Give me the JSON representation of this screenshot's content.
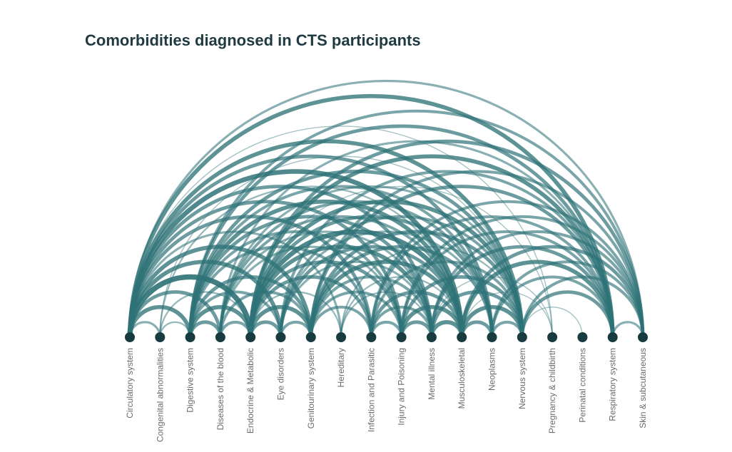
{
  "title": "Comorbidities diagnosed in CTS participants",
  "colors": {
    "arc": "#2e7277",
    "node": "#173b3e",
    "label": "#6b6b6b",
    "title": "#1f3a40"
  },
  "chart_data": {
    "type": "arc",
    "title": "Comorbidities diagnosed in CTS participants",
    "nodes": [
      "Circulatory system",
      "Congenital abnormalities",
      "Digestive system",
      "Diseases of the blood",
      "Endocrine & Metabolic",
      "Eye disorders",
      "Genitourinary system",
      "Hereditary",
      "Infection and Parasitic",
      "Injury and Poisoning",
      "Mental illness",
      "Musculoskeletal",
      "Neoplasms",
      "Nervous system",
      "Pregnancy & childbirth",
      "Perinatal conditions",
      "Respiratory system",
      "Skin & subcutaneous"
    ],
    "links": [
      {
        "source": "Circulatory system",
        "target": "Skin & subcutaneous",
        "value": 3
      },
      {
        "source": "Circulatory system",
        "target": "Respiratory system",
        "value": 6
      },
      {
        "source": "Circulatory system",
        "target": "Nervous system",
        "value": 6
      },
      {
        "source": "Circulatory system",
        "target": "Neoplasms",
        "value": 5
      },
      {
        "source": "Circulatory system",
        "target": "Musculoskeletal",
        "value": 7
      },
      {
        "source": "Circulatory system",
        "target": "Mental illness",
        "value": 5
      },
      {
        "source": "Circulatory system",
        "target": "Injury and Poisoning",
        "value": 5
      },
      {
        "source": "Circulatory system",
        "target": "Infection and Parasitic",
        "value": 5
      },
      {
        "source": "Circulatory system",
        "target": "Hereditary",
        "value": 3
      },
      {
        "source": "Circulatory system",
        "target": "Genitourinary system",
        "value": 6
      },
      {
        "source": "Circulatory system",
        "target": "Eye disorders",
        "value": 6
      },
      {
        "source": "Circulatory system",
        "target": "Endocrine & Metabolic",
        "value": 8
      },
      {
        "source": "Circulatory system",
        "target": "Diseases of the blood",
        "value": 5
      },
      {
        "source": "Circulatory system",
        "target": "Digestive system",
        "value": 6
      },
      {
        "source": "Circulatory system",
        "target": "Congenital abnormalities",
        "value": 3
      },
      {
        "source": "Circulatory system",
        "target": "Pregnancy & childbirth",
        "value": 1
      },
      {
        "source": "Congenital abnormalities",
        "target": "Digestive system",
        "value": 2
      },
      {
        "source": "Congenital abnormalities",
        "target": "Endocrine & Metabolic",
        "value": 2
      },
      {
        "source": "Congenital abnormalities",
        "target": "Musculoskeletal",
        "value": 2
      },
      {
        "source": "Congenital abnormalities",
        "target": "Nervous system",
        "value": 1
      },
      {
        "source": "Digestive system",
        "target": "Skin & subcutaneous",
        "value": 4
      },
      {
        "source": "Digestive system",
        "target": "Respiratory system",
        "value": 5
      },
      {
        "source": "Digestive system",
        "target": "Nervous system",
        "value": 5
      },
      {
        "source": "Digestive system",
        "target": "Neoplasms",
        "value": 4
      },
      {
        "source": "Digestive system",
        "target": "Musculoskeletal",
        "value": 6
      },
      {
        "source": "Digestive system",
        "target": "Mental illness",
        "value": 5
      },
      {
        "source": "Digestive system",
        "target": "Injury and Poisoning",
        "value": 4
      },
      {
        "source": "Digestive system",
        "target": "Infection and Parasitic",
        "value": 4
      },
      {
        "source": "Digestive system",
        "target": "Genitourinary system",
        "value": 5
      },
      {
        "source": "Digestive system",
        "target": "Eye disorders",
        "value": 4
      },
      {
        "source": "Digestive system",
        "target": "Endocrine & Metabolic",
        "value": 6
      },
      {
        "source": "Digestive system",
        "target": "Diseases of the blood",
        "value": 5
      },
      {
        "source": "Diseases of the blood",
        "target": "Endocrine & Metabolic",
        "value": 4
      },
      {
        "source": "Diseases of the blood",
        "target": "Genitourinary system",
        "value": 4
      },
      {
        "source": "Diseases of the blood",
        "target": "Musculoskeletal",
        "value": 4
      },
      {
        "source": "Diseases of the blood",
        "target": "Neoplasms",
        "value": 4
      },
      {
        "source": "Diseases of the blood",
        "target": "Nervous system",
        "value": 3
      },
      {
        "source": "Diseases of the blood",
        "target": "Respiratory system",
        "value": 3
      },
      {
        "source": "Diseases of the blood",
        "target": "Mental illness",
        "value": 3
      },
      {
        "source": "Diseases of the blood",
        "target": "Injury and Poisoning",
        "value": 3
      },
      {
        "source": "Endocrine & Metabolic",
        "target": "Skin & subcutaneous",
        "value": 5
      },
      {
        "source": "Endocrine & Metabolic",
        "target": "Respiratory system",
        "value": 6
      },
      {
        "source": "Endocrine & Metabolic",
        "target": "Nervous system",
        "value": 6
      },
      {
        "source": "Endocrine & Metabolic",
        "target": "Neoplasms",
        "value": 5
      },
      {
        "source": "Endocrine & Metabolic",
        "target": "Musculoskeletal",
        "value": 7
      },
      {
        "source": "Endocrine & Metabolic",
        "target": "Mental illness",
        "value": 6
      },
      {
        "source": "Endocrine & Metabolic",
        "target": "Injury and Poisoning",
        "value": 5
      },
      {
        "source": "Endocrine & Metabolic",
        "target": "Infection and Parasitic",
        "value": 5
      },
      {
        "source": "Endocrine & Metabolic",
        "target": "Hereditary",
        "value": 2
      },
      {
        "source": "Endocrine & Metabolic",
        "target": "Genitourinary system",
        "value": 6
      },
      {
        "source": "Endocrine & Metabolic",
        "target": "Eye disorders",
        "value": 5
      },
      {
        "source": "Eye disorders",
        "target": "Genitourinary system",
        "value": 4
      },
      {
        "source": "Eye disorders",
        "target": "Musculoskeletal",
        "value": 5
      },
      {
        "source": "Eye disorders",
        "target": "Nervous system",
        "value": 4
      },
      {
        "source": "Eye disorders",
        "target": "Respiratory system",
        "value": 4
      },
      {
        "source": "Eye disorders",
        "target": "Mental illness",
        "value": 3
      },
      {
        "source": "Eye disorders",
        "target": "Neoplasms",
        "value": 3
      },
      {
        "source": "Genitourinary system",
        "target": "Skin & subcutaneous",
        "value": 4
      },
      {
        "source": "Genitourinary system",
        "target": "Respiratory system",
        "value": 5
      },
      {
        "source": "Genitourinary system",
        "target": "Nervous system",
        "value": 5
      },
      {
        "source": "Genitourinary system",
        "target": "Neoplasms",
        "value": 5
      },
      {
        "source": "Genitourinary system",
        "target": "Musculoskeletal",
        "value": 6
      },
      {
        "source": "Genitourinary system",
        "target": "Mental illness",
        "value": 4
      },
      {
        "source": "Genitourinary system",
        "target": "Injury and Poisoning",
        "value": 4
      },
      {
        "source": "Genitourinary system",
        "target": "Infection and Parasitic",
        "value": 4
      },
      {
        "source": "Hereditary",
        "target": "Musculoskeletal",
        "value": 2
      },
      {
        "source": "Hereditary",
        "target": "Nervous system",
        "value": 2
      },
      {
        "source": "Hereditary",
        "target": "Mental illness",
        "value": 2
      },
      {
        "source": "Infection and Parasitic",
        "target": "Skin & subcutaneous",
        "value": 4
      },
      {
        "source": "Infection and Parasitic",
        "target": "Respiratory system",
        "value": 4
      },
      {
        "source": "Infection and Parasitic",
        "target": "Nervous system",
        "value": 4
      },
      {
        "source": "Infection and Parasitic",
        "target": "Musculoskeletal",
        "value": 5
      },
      {
        "source": "Infection and Parasitic",
        "target": "Mental illness",
        "value": 4
      },
      {
        "source": "Infection and Parasitic",
        "target": "Injury and Poisoning",
        "value": 4
      },
      {
        "source": "Injury and Poisoning",
        "target": "Skin & subcutaneous",
        "value": 4
      },
      {
        "source": "Injury and Poisoning",
        "target": "Respiratory system",
        "value": 4
      },
      {
        "source": "Injury and Poisoning",
        "target": "Nervous system",
        "value": 5
      },
      {
        "source": "Injury and Poisoning",
        "target": "Musculoskeletal",
        "value": 6
      },
      {
        "source": "Injury and Poisoning",
        "target": "Mental illness",
        "value": 5
      },
      {
        "source": "Mental illness",
        "target": "Skin & subcutaneous",
        "value": 4
      },
      {
        "source": "Mental illness",
        "target": "Respiratory system",
        "value": 5
      },
      {
        "source": "Mental illness",
        "target": "Nervous system",
        "value": 5
      },
      {
        "source": "Mental illness",
        "target": "Musculoskeletal",
        "value": 6
      },
      {
        "source": "Musculoskeletal",
        "target": "Skin & subcutaneous",
        "value": 5
      },
      {
        "source": "Musculoskeletal",
        "target": "Respiratory system",
        "value": 6
      },
      {
        "source": "Musculoskeletal",
        "target": "Nervous system",
        "value": 6
      },
      {
        "source": "Musculoskeletal",
        "target": "Neoplasms",
        "value": 5
      },
      {
        "source": "Neoplasms",
        "target": "Skin & subcutaneous",
        "value": 4
      },
      {
        "source": "Neoplasms",
        "target": "Respiratory system",
        "value": 4
      },
      {
        "source": "Neoplasms",
        "target": "Nervous system",
        "value": 4
      },
      {
        "source": "Nervous system",
        "target": "Skin & subcutaneous",
        "value": 4
      },
      {
        "source": "Nervous system",
        "target": "Respiratory system",
        "value": 5
      },
      {
        "source": "Respiratory system",
        "target": "Skin & subcutaneous",
        "value": 3
      },
      {
        "source": "Pregnancy & childbirth",
        "target": "Musculoskeletal",
        "value": 1
      },
      {
        "source": "Pregnancy & childbirth",
        "target": "Endocrine & Metabolic",
        "value": 1
      },
      {
        "source": "Pregnancy & childbirth",
        "target": "Mental illness",
        "value": 1
      },
      {
        "source": "Perinatal conditions",
        "target": "Nervous system",
        "value": 1
      }
    ]
  }
}
